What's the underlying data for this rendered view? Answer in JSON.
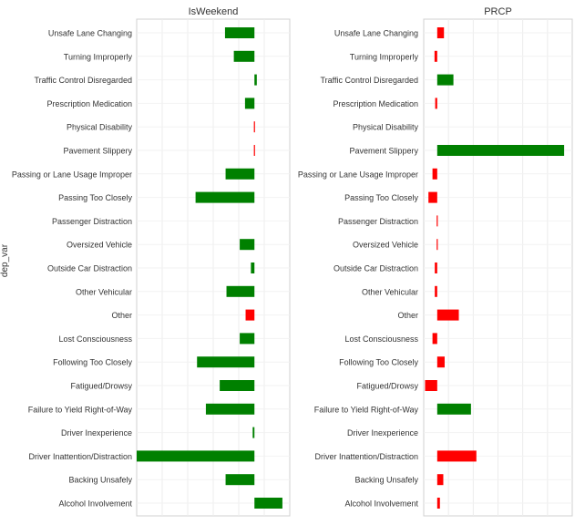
{
  "chart_data": {
    "ylabel": "dep_var",
    "categories": [
      "Unsafe Lane Changing",
      "Turning Improperly",
      "Traffic Control Disregarded",
      "Prescription Medication",
      "Physical Disability",
      "Pavement Slippery",
      "Passing or Lane Usage Improper",
      "Passing Too Closely",
      "Passenger Distraction",
      "Oversized Vehicle",
      "Outside Car Distraction",
      "Other Vehicular",
      "Other",
      "Lost Consciousness",
      "Following Too Closely",
      "Fatigued/Drowsy",
      "Failure to Yield Right-of-Way",
      "Driver Inexperience",
      "Driver Inattention/Distraction",
      "Backing Unsafely",
      "Alcohol Involvement"
    ],
    "colors": {
      "positive": "#008000",
      "negative": "#ff0000"
    },
    "panels": [
      {
        "title": "IsWeekend",
        "type": "bar",
        "orientation": "horizontal",
        "xlim": [
          -0.4,
          0.12
        ],
        "grid": true,
        "bars": [
          {
            "value": -0.1,
            "color": "positive"
          },
          {
            "value": -0.07,
            "color": "positive"
          },
          {
            "value": 0.008,
            "color": "positive"
          },
          {
            "value": -0.032,
            "color": "positive"
          },
          {
            "value": 0.002,
            "color": "negative"
          },
          {
            "value": -0.003,
            "color": "negative"
          },
          {
            "value": -0.098,
            "color": "positive"
          },
          {
            "value": -0.2,
            "color": "positive"
          },
          {
            "value": 0.0,
            "color": "positive"
          },
          {
            "value": -0.05,
            "color": "positive"
          },
          {
            "value": -0.012,
            "color": "positive"
          },
          {
            "value": -0.095,
            "color": "positive"
          },
          {
            "value": -0.03,
            "color": "negative"
          },
          {
            "value": -0.05,
            "color": "positive"
          },
          {
            "value": -0.195,
            "color": "positive"
          },
          {
            "value": -0.118,
            "color": "positive"
          },
          {
            "value": -0.165,
            "color": "positive"
          },
          {
            "value": -0.006,
            "color": "positive"
          },
          {
            "value": -0.4,
            "color": "positive"
          },
          {
            "value": -0.098,
            "color": "positive"
          },
          {
            "value": 0.095,
            "color": "positive"
          }
        ]
      },
      {
        "title": "PRCP",
        "type": "bar",
        "orientation": "horizontal",
        "xlim": [
          -0.1,
          1.0
        ],
        "grid": true,
        "bars": [
          {
            "value": 0.05,
            "color": "negative"
          },
          {
            "value": -0.02,
            "color": "negative"
          },
          {
            "value": 0.12,
            "color": "positive"
          },
          {
            "value": -0.015,
            "color": "negative"
          },
          {
            "value": 0.0,
            "color": "positive"
          },
          {
            "value": 0.94,
            "color": "positive"
          },
          {
            "value": -0.035,
            "color": "negative"
          },
          {
            "value": -0.065,
            "color": "negative"
          },
          {
            "value": -0.007,
            "color": "negative"
          },
          {
            "value": -0.007,
            "color": "negative"
          },
          {
            "value": -0.018,
            "color": "negative"
          },
          {
            "value": -0.018,
            "color": "negative"
          },
          {
            "value": 0.16,
            "color": "negative"
          },
          {
            "value": -0.035,
            "color": "negative"
          },
          {
            "value": 0.055,
            "color": "negative"
          },
          {
            "value": -0.09,
            "color": "negative"
          },
          {
            "value": 0.25,
            "color": "positive"
          },
          {
            "value": 0.0,
            "color": "positive"
          },
          {
            "value": 0.29,
            "color": "negative"
          },
          {
            "value": 0.045,
            "color": "negative"
          },
          {
            "value": 0.02,
            "color": "negative"
          }
        ]
      }
    ]
  }
}
